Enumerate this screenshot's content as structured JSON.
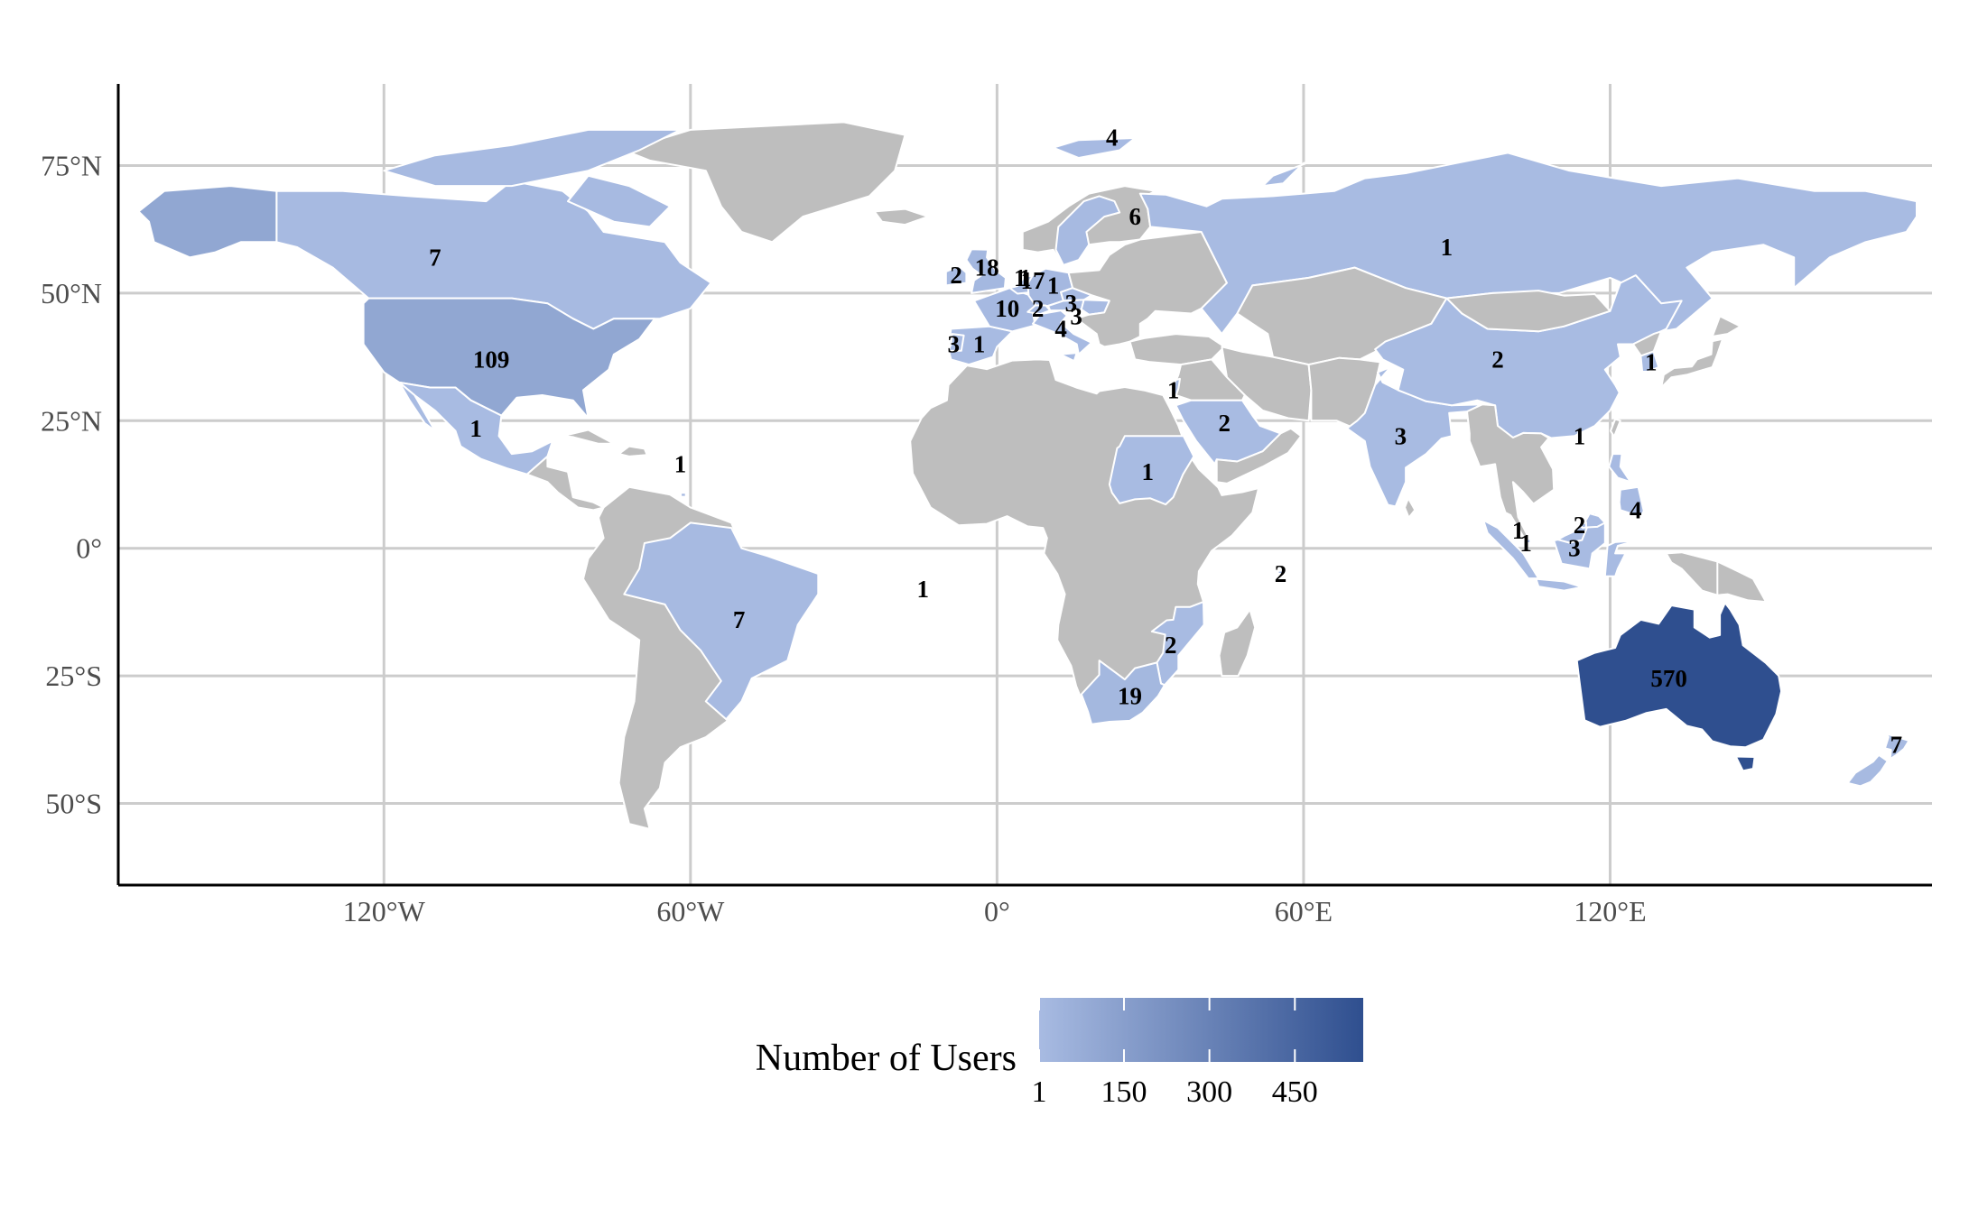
{
  "legend": {
    "title": "Number of Users",
    "ticks": [
      "1",
      "150",
      "300",
      "450"
    ],
    "color_low": "#a8bbe2",
    "color_high": "#2f4f8f",
    "max_value": 570
  },
  "colors": {
    "no_data": "#bebebe",
    "border": "#ffffff",
    "grid": "#cccccc"
  },
  "axes": {
    "x_ticks": [
      {
        "value": -120,
        "label": "120°W"
      },
      {
        "value": -60,
        "label": "60°W"
      },
      {
        "value": 0,
        "label": "0°"
      },
      {
        "value": 60,
        "label": "60°E"
      },
      {
        "value": 120,
        "label": "120°E"
      }
    ],
    "y_ticks": [
      {
        "value": 75,
        "label": "75°N"
      },
      {
        "value": 50,
        "label": "50°N"
      },
      {
        "value": 25,
        "label": "25°N"
      },
      {
        "value": 0,
        "label": "0°"
      },
      {
        "value": -25,
        "label": "25°S"
      },
      {
        "value": -50,
        "label": "50°S"
      }
    ]
  },
  "chart_data": {
    "type": "choropleth",
    "xlim": [
      -172,
      183
    ],
    "ylim": [
      -66,
      91
    ],
    "grid": true,
    "legend_placement": "bottom",
    "regions": [
      {
        "name": "Australia",
        "count": 570,
        "lon": 131.5,
        "lat": -25.5
      },
      {
        "name": "United States",
        "count": 109,
        "lon": -99,
        "lat": 37
      },
      {
        "name": "South Africa",
        "count": 19,
        "lon": 26,
        "lat": -29
      },
      {
        "name": "United Kingdom",
        "count": 18,
        "lon": -2,
        "lat": 55
      },
      {
        "name": "Germany",
        "count": 17,
        "lon": 7,
        "lat": 52.5
      },
      {
        "name": "France",
        "count": 10,
        "lon": 2,
        "lat": 47
      },
      {
        "name": "Canada",
        "count": 7,
        "lon": -110,
        "lat": 57
      },
      {
        "name": "Brazil",
        "count": 7,
        "lon": -50.5,
        "lat": -14
      },
      {
        "name": "New Zealand",
        "count": 7,
        "lon": 176,
        "lat": -38.5
      },
      {
        "name": "Sweden",
        "count": 6,
        "lon": 27,
        "lat": 65
      },
      {
        "name": "Svalbard",
        "count": 4,
        "lon": 22.5,
        "lat": 80.5
      },
      {
        "name": "Italy",
        "count": 4,
        "lon": 12.5,
        "lat": 43
      },
      {
        "name": "Philippines",
        "count": 4,
        "lon": 125,
        "lat": 7.5
      },
      {
        "name": "Spain",
        "count": 3,
        "lon": -8.5,
        "lat": 40
      },
      {
        "name": "India",
        "count": 3,
        "lon": 79,
        "lat": 22
      },
      {
        "name": "Austria",
        "count": 3,
        "lon": 14.5,
        "lat": 48
      },
      {
        "name": "Hungary",
        "count": 3,
        "lon": 15.5,
        "lat": 45.5
      },
      {
        "name": "Malaysia",
        "count": 3,
        "lon": 113,
        "lat": 0
      },
      {
        "name": "Ireland",
        "count": 2,
        "lon": -8,
        "lat": 53.5
      },
      {
        "name": "Switzerland",
        "count": 2,
        "lon": 8,
        "lat": 47
      },
      {
        "name": "Saudi Arabia",
        "count": 2,
        "lon": 44.5,
        "lat": 24.5
      },
      {
        "name": "China",
        "count": 2,
        "lon": 98,
        "lat": 37
      },
      {
        "name": "Brunei",
        "count": 2,
        "lon": 114,
        "lat": 4.5
      },
      {
        "name": "Seychelles",
        "count": 2,
        "lon": 55.5,
        "lat": -5
      },
      {
        "name": "Mozambique",
        "count": 2,
        "lon": 34,
        "lat": -19
      },
      {
        "name": "Belgium",
        "count": 1,
        "lon": 4.5,
        "lat": 53
      },
      {
        "name": "Netherlands",
        "count": 1,
        "lon": 5.5,
        "lat": 53
      },
      {
        "name": "Czechia",
        "count": 1,
        "lon": 11,
        "lat": 51.5
      },
      {
        "name": "Portugal",
        "count": 1,
        "lon": -3.5,
        "lat": 40
      },
      {
        "name": "Russia",
        "count": 1,
        "lon": 88,
        "lat": 59
      },
      {
        "name": "Mexico",
        "count": 1,
        "lon": -102,
        "lat": 23.5
      },
      {
        "name": "Trinidad and Tobago",
        "count": 1,
        "lon": -62,
        "lat": 16.5
      },
      {
        "name": "Saint Helena",
        "count": 1,
        "lon": -14.5,
        "lat": -8
      },
      {
        "name": "Sudan",
        "count": 1,
        "lon": 29.5,
        "lat": 15
      },
      {
        "name": "Israel",
        "count": 1,
        "lon": 34.5,
        "lat": 31
      },
      {
        "name": "South Korea",
        "count": 1,
        "lon": 128,
        "lat": 36.5
      },
      {
        "name": "Hong Kong",
        "count": 1,
        "lon": 114,
        "lat": 22
      },
      {
        "name": "Singapore",
        "count": 1,
        "lon": 102,
        "lat": 3.5
      },
      {
        "name": "Indonesia",
        "count": 1,
        "lon": 103.5,
        "lat": 1
      }
    ]
  }
}
